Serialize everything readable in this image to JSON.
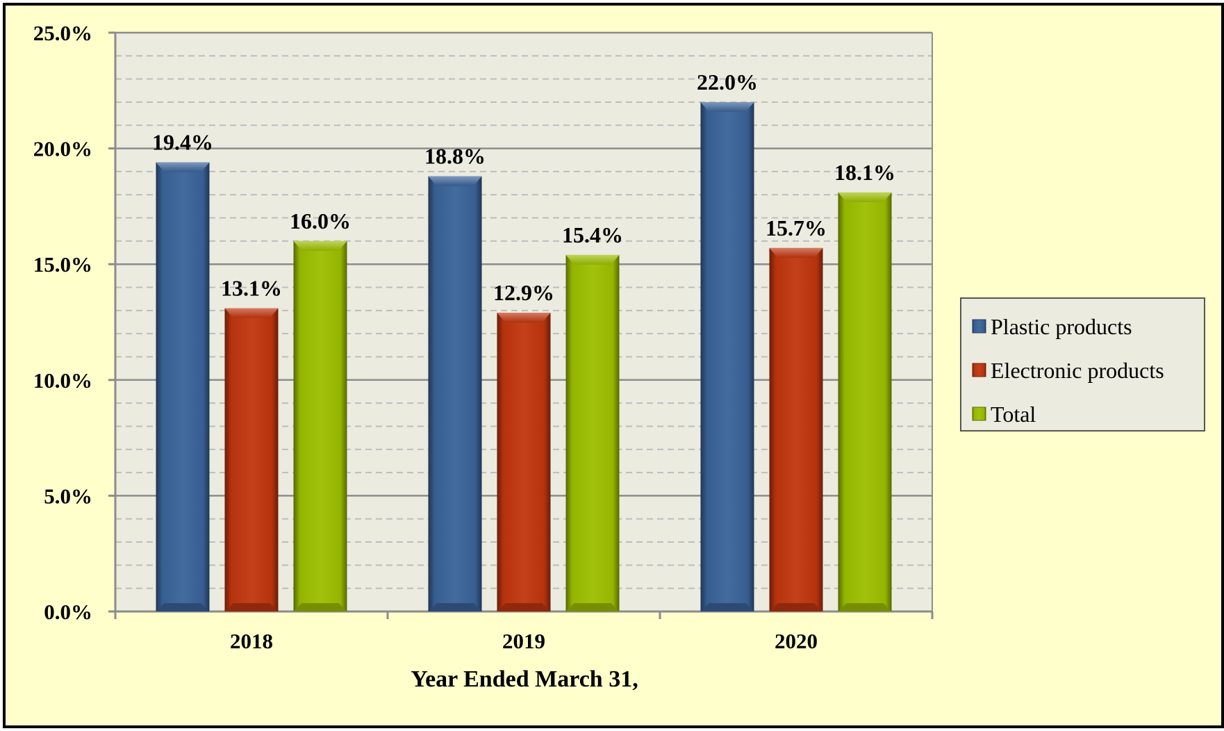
{
  "chart_data": {
    "type": "bar",
    "categories": [
      "2018",
      "2019",
      "2020"
    ],
    "series": [
      {
        "name": "Plastic products",
        "values": [
          19.4,
          18.8,
          22.0
        ],
        "color": "#3a6399",
        "labels": [
          "19.4%",
          "18.8%",
          "22.0%"
        ]
      },
      {
        "name": "Electronic products",
        "values": [
          13.1,
          12.9,
          15.7
        ],
        "color": "#c0360e",
        "labels": [
          "13.1%",
          "12.9%",
          "15.7%"
        ]
      },
      {
        "name": "Total",
        "values": [
          16.0,
          15.4,
          18.1
        ],
        "color": "#9cbf00",
        "labels": [
          "16.0%",
          "15.4%",
          "18.1%"
        ]
      }
    ],
    "title": "",
    "xlabel": "Year Ended March 31,",
    "ylabel": "",
    "ylim": [
      0,
      25
    ],
    "yticks": [
      0,
      5,
      10,
      15,
      20,
      25
    ],
    "ytick_labels": [
      "0.0%",
      "5.0%",
      "10.0%",
      "15.0%",
      "20.0%",
      "25.0%"
    ],
    "grid": true,
    "legend_position": "right",
    "plot_background": "#ecebe0",
    "chart_background": "#ffffcc"
  }
}
